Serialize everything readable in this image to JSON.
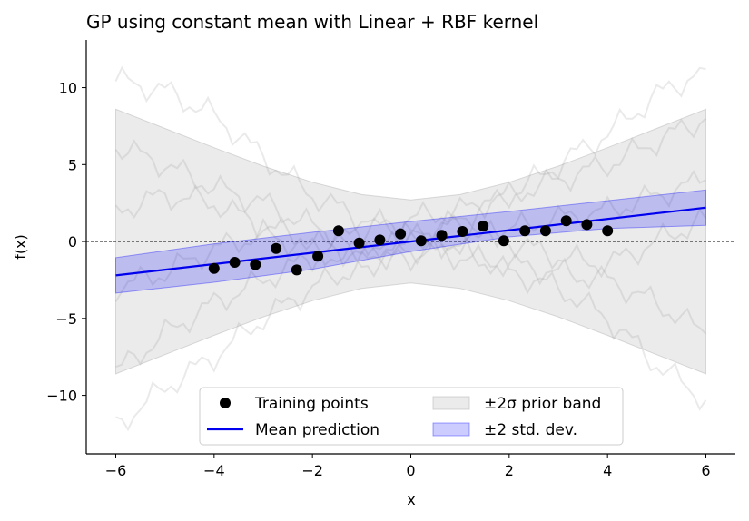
{
  "chart_data": {
    "type": "line",
    "title": "GP using constant mean with Linear + RBF kernel",
    "xlabel": "x",
    "ylabel": "f(x)",
    "xlim": [
      -6.6,
      6.6
    ],
    "ylim": [
      -13.8,
      13.1
    ],
    "xticks": [
      -6,
      -4,
      -2,
      0,
      2,
      4,
      6
    ],
    "yticks": [
      -10,
      -5,
      0,
      5,
      10
    ],
    "xtick_labels": [
      "−6",
      "−4",
      "−2",
      "0",
      "2",
      "4",
      "6"
    ],
    "ytick_labels": [
      "−10",
      "−5",
      "0",
      "5",
      "10"
    ],
    "grid": false,
    "legend_position": "bottom-center",
    "reference_line": {
      "y": 0,
      "style": "dashed",
      "color": "#000000"
    },
    "training_points": {
      "name": "Training points",
      "color": "#000000",
      "x": [
        -4.0,
        -3.58,
        -3.16,
        -2.74,
        -2.32,
        -1.89,
        -1.47,
        -1.05,
        -0.63,
        -0.21,
        0.21,
        0.63,
        1.05,
        1.47,
        1.89,
        2.32,
        2.74,
        3.16,
        3.58,
        4.0
      ],
      "y": [
        -1.75,
        -1.35,
        -1.5,
        -0.45,
        -1.85,
        -0.95,
        0.7,
        -0.1,
        0.1,
        0.5,
        0.05,
        0.4,
        0.65,
        1.0,
        0.05,
        0.7,
        0.7,
        1.35,
        1.1,
        0.7
      ]
    },
    "mean_prediction": {
      "name": "Mean prediction",
      "color": "#0000ee",
      "x": [
        -6,
        6
      ],
      "y": [
        -2.2,
        2.2
      ]
    },
    "posterior_band": {
      "name": "±2 std. dev.",
      "color": "#0000ff",
      "x": [
        -6,
        -4,
        -2,
        0,
        2,
        4,
        6
      ],
      "lower": [
        -3.35,
        -2.65,
        -1.8,
        -0.65,
        0.3,
        0.85,
        1.05
      ],
      "upper": [
        -1.05,
        -0.15,
        0.6,
        1.3,
        1.95,
        2.65,
        3.35
      ]
    },
    "prior_band": {
      "name": "±2σ prior band",
      "color": "#b0b0b0",
      "x": [
        -6,
        -5,
        -4,
        -3,
        -2,
        -1,
        0,
        1,
        2,
        3,
        4,
        5,
        6
      ],
      "lower": [
        -8.6,
        -7.35,
        -6.1,
        -4.9,
        -3.85,
        -3.05,
        -2.7,
        -3.05,
        -3.85,
        -4.9,
        -6.1,
        -7.35,
        -8.6
      ],
      "upper": [
        8.6,
        7.35,
        6.1,
        4.9,
        3.85,
        3.05,
        2.7,
        3.05,
        3.85,
        4.9,
        6.1,
        7.35,
        8.6
      ]
    },
    "prior_samples": [
      {
        "x": [
          -6,
          -5,
          -4,
          -3,
          -2,
          -1,
          0,
          1,
          2,
          3,
          4,
          5,
          6
        ],
        "y": [
          10.5,
          9.8,
          8.2,
          5.5,
          3.0,
          1.5,
          0.5,
          -0.5,
          -2.0,
          -3.0,
          -5.0,
          -8.0,
          -10.3
        ]
      },
      {
        "x": [
          -6,
          -5,
          -4,
          -3,
          -2,
          -1,
          0,
          1,
          2,
          3,
          4,
          5,
          6
        ],
        "y": [
          -12.0,
          -9.5,
          -7.5,
          -5.0,
          -3.0,
          -1.5,
          -0.2,
          1.5,
          3.0,
          5.0,
          7.0,
          9.5,
          11.2
        ]
      },
      {
        "x": [
          -6,
          -5,
          -4,
          -3,
          -2,
          -1,
          0,
          1,
          2,
          3,
          4,
          5,
          6
        ],
        "y": [
          6.2,
          5.0,
          3.5,
          2.5,
          1.0,
          0.0,
          -0.5,
          -1.0,
          -1.5,
          -2.0,
          -2.5,
          -4.0,
          -6.0
        ]
      },
      {
        "x": [
          -6,
          -5,
          -4,
          -3,
          -2,
          -1,
          0,
          1,
          2,
          3,
          4,
          5,
          6
        ],
        "y": [
          -8.5,
          -6.0,
          -4.0,
          -2.5,
          -1.0,
          0.5,
          1.5,
          2.0,
          3.0,
          4.0,
          5.0,
          6.5,
          8.0
        ]
      },
      {
        "x": [
          -6,
          -5,
          -4,
          -3,
          -2,
          -1,
          0,
          1,
          2,
          3,
          4,
          5,
          6
        ],
        "y": [
          2.0,
          3.0,
          2.5,
          1.0,
          0.0,
          -1.0,
          0.5,
          1.0,
          0.0,
          -1.0,
          -1.5,
          0.0,
          1.5
        ]
      },
      {
        "x": [
          -6,
          -5,
          -4,
          -3,
          -2,
          -1,
          0,
          1,
          2,
          3,
          4,
          5,
          6
        ],
        "y": [
          -3.0,
          -2.0,
          -0.5,
          0.5,
          -0.5,
          -1.5,
          -1.0,
          0.0,
          0.8,
          1.5,
          2.0,
          3.0,
          4.0
        ]
      }
    ],
    "legend": [
      "Training points",
      "Mean prediction",
      "±2σ prior band",
      "±2 std. dev."
    ]
  }
}
